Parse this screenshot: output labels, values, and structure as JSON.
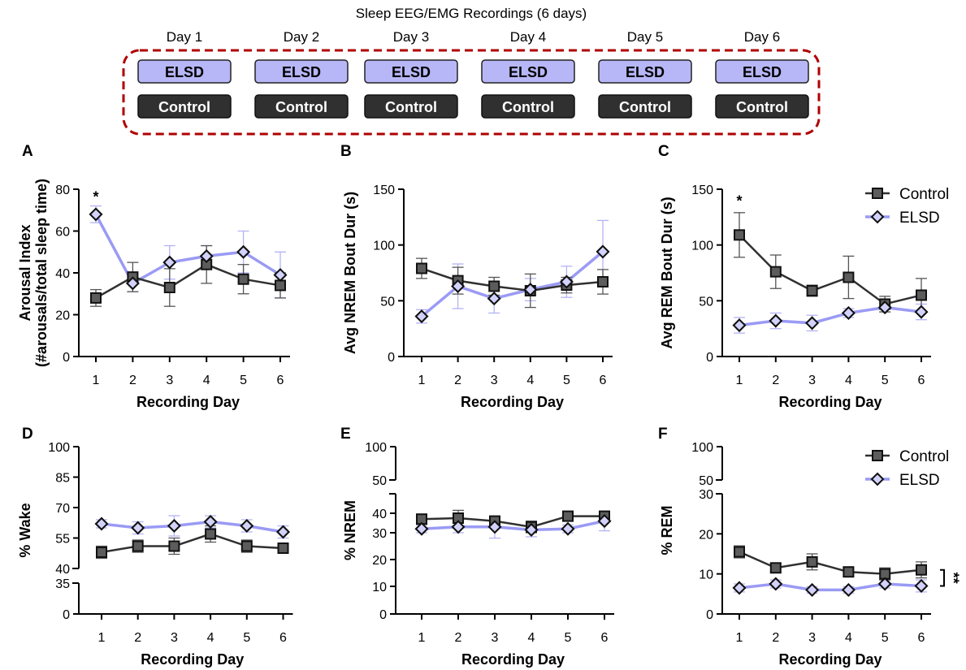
{
  "design": {
    "title": "Sleep EEG/EMG Recordings (6 days)",
    "days": [
      "Day 1",
      "Day 2",
      "Day 3",
      "Day 4",
      "Day 5",
      "Day 6"
    ],
    "elsd_label": "ELSD",
    "control_label": "Control",
    "colors": {
      "elsd_box": "#b7b7f7",
      "control_box": "#303030",
      "frame": "#b00000"
    }
  },
  "colors": {
    "control": "#303030",
    "control_marker": "#5c5c5c",
    "elsd": "#9a9af5",
    "elsd_marker": "#d2d2fb",
    "axis": "#000000"
  },
  "chart_data": [
    {
      "panel": "A",
      "type": "line",
      "xlabel": "Recording Day",
      "ylabel": [
        "Arousal  Index",
        "(#arousals/total sleep time)"
      ],
      "x": [
        1,
        2,
        3,
        4,
        5,
        6
      ],
      "ylim": [
        0,
        80
      ],
      "yticks": [
        0,
        20,
        40,
        60,
        80
      ],
      "series": [
        {
          "name": "Control",
          "values": [
            28,
            38,
            33,
            44,
            37,
            34
          ],
          "err": [
            4,
            7,
            9,
            9,
            7,
            6
          ]
        },
        {
          "name": "ELSD",
          "values": [
            68,
            35,
            45,
            48,
            50,
            39
          ],
          "err": [
            4,
            4,
            8,
            5,
            10,
            11
          ]
        }
      ],
      "annotations": [
        {
          "x": 1,
          "y": 77,
          "text": "*"
        }
      ]
    },
    {
      "panel": "B",
      "type": "line",
      "xlabel": "Recording Day",
      "ylabel": [
        "Avg NREM Bout Dur (s)"
      ],
      "x": [
        1,
        2,
        3,
        4,
        5,
        6
      ],
      "ylim": [
        0,
        150
      ],
      "yticks": [
        0,
        50,
        100,
        150
      ],
      "series": [
        {
          "name": "Control",
          "values": [
            79,
            68,
            63,
            59,
            64,
            67
          ],
          "err": [
            9,
            12,
            8,
            15,
            7,
            11
          ]
        },
        {
          "name": "ELSD",
          "values": [
            36,
            63,
            52,
            60,
            67,
            94
          ],
          "err": [
            6,
            20,
            13,
            10,
            14,
            28
          ]
        }
      ]
    },
    {
      "panel": "C",
      "type": "line",
      "xlabel": "Recording Day",
      "ylabel": [
        "Avg REM Bout Dur (s)"
      ],
      "x": [
        1,
        2,
        3,
        4,
        5,
        6
      ],
      "ylim": [
        0,
        150
      ],
      "yticks": [
        0,
        50,
        100,
        150
      ],
      "series": [
        {
          "name": "Control",
          "values": [
            109,
            76,
            59,
            71,
            47,
            55
          ],
          "err": [
            20,
            15,
            5,
            19,
            7,
            15
          ]
        },
        {
          "name": "ELSD",
          "values": [
            28,
            32,
            30,
            39,
            44,
            40
          ],
          "err": [
            7,
            7,
            7,
            4,
            4,
            7
          ]
        }
      ],
      "annotations": [
        {
          "x": 1,
          "y": 141,
          "text": "*"
        }
      ],
      "legend": {
        "placement": "top-right"
      }
    },
    {
      "panel": "D",
      "type": "line",
      "xlabel": "Recording Day",
      "ylabel": [
        "% Wake"
      ],
      "x": [
        1,
        2,
        3,
        4,
        5,
        6
      ],
      "ylim_lower": [
        0,
        35
      ],
      "ylim_upper": [
        40,
        100
      ],
      "yticks_lower": [
        0,
        35
      ],
      "yticks_upper": [
        40,
        55,
        70,
        85,
        100
      ],
      "series": [
        {
          "name": "Control",
          "values": [
            48,
            51,
            51,
            57,
            51,
            50
          ],
          "err": [
            3,
            3,
            4,
            4,
            3,
            2
          ]
        },
        {
          "name": "ELSD",
          "values": [
            62,
            60,
            61,
            63,
            61,
            58
          ],
          "err": [
            2,
            3,
            5,
            3,
            3,
            3
          ]
        }
      ]
    },
    {
      "panel": "E",
      "type": "line",
      "xlabel": "Recording Day",
      "ylabel": [
        "% NREM"
      ],
      "x": [
        1,
        2,
        3,
        4,
        5,
        6
      ],
      "ylim_lower": [
        0,
        45
      ],
      "ylim_upper": [
        50,
        100
      ],
      "yticks_lower": [
        0,
        10,
        20,
        30,
        40
      ],
      "yticks_upper": [
        50,
        100
      ],
      "series": [
        {
          "name": "Control",
          "values": [
            37,
            37.5,
            36,
            33,
            38.5,
            38.5
          ],
          "err": [
            2,
            4,
            2,
            3,
            2,
            2
          ]
        },
        {
          "name": "ELSD",
          "values": [
            32,
            33,
            33,
            31.5,
            32,
            36
          ],
          "err": [
            2,
            3,
            5,
            3,
            2,
            5
          ]
        }
      ]
    },
    {
      "panel": "F",
      "type": "line",
      "xlabel": "Recording Day",
      "ylabel": [
        "% REM"
      ],
      "x": [
        1,
        2,
        3,
        4,
        5,
        6
      ],
      "ylim_lower": [
        0,
        30
      ],
      "ylim_upper": [
        50,
        100
      ],
      "yticks_lower": [
        0,
        10,
        20,
        30
      ],
      "yticks_upper": [
        50,
        100
      ],
      "series": [
        {
          "name": "Control",
          "values": [
            15.5,
            11.5,
            13,
            10.5,
            10,
            11
          ],
          "err": [
            1.5,
            1,
            2,
            1,
            1.5,
            2
          ]
        },
        {
          "name": "ELSD",
          "values": [
            6.5,
            7.5,
            6,
            6,
            7.5,
            7
          ],
          "err": [
            1,
            1,
            0.8,
            0.8,
            1,
            1.5
          ]
        }
      ],
      "annotations": [
        {
          "text": "**",
          "between": [
            "Control",
            "ELSD"
          ],
          "at_x": 6
        }
      ],
      "legend": {
        "placement": "top-right"
      }
    }
  ]
}
